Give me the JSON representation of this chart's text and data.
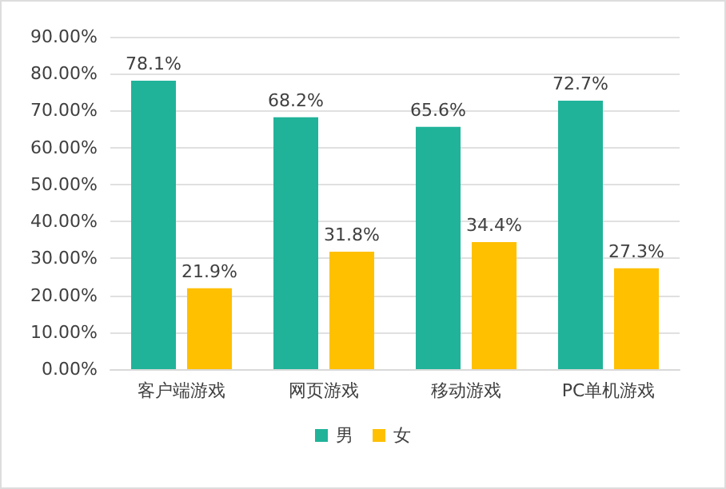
{
  "chart_data": {
    "type": "bar",
    "categories": [
      "客户端游戏",
      "网页游戏",
      "移动游戏",
      "PC单机游戏"
    ],
    "series": [
      {
        "name": "男",
        "color": "#20b39a",
        "values": [
          78.1,
          68.2,
          65.6,
          72.7
        ],
        "value_labels": [
          "78.1%",
          "68.2%",
          "65.6%",
          "72.7%"
        ]
      },
      {
        "name": "女",
        "color": "#ffc000",
        "values": [
          21.9,
          31.8,
          34.4,
          27.3
        ],
        "value_labels": [
          "21.9%",
          "31.8%",
          "34.4%",
          "27.3%"
        ]
      }
    ],
    "ylim": [
      0,
      90
    ],
    "yticks": [
      {
        "value": 0,
        "label": "0.00%"
      },
      {
        "value": 10,
        "label": "10.00%"
      },
      {
        "value": 20,
        "label": "20.00%"
      },
      {
        "value": 30,
        "label": "30.00%"
      },
      {
        "value": 40,
        "label": "40.00%"
      },
      {
        "value": 50,
        "label": "50.00%"
      },
      {
        "value": 60,
        "label": "60.00%"
      },
      {
        "value": 70,
        "label": "70.00%"
      },
      {
        "value": 80,
        "label": "80.00%"
      },
      {
        "value": 90,
        "label": "90.00%"
      }
    ],
    "grid": "y",
    "legend": "bottom"
  }
}
